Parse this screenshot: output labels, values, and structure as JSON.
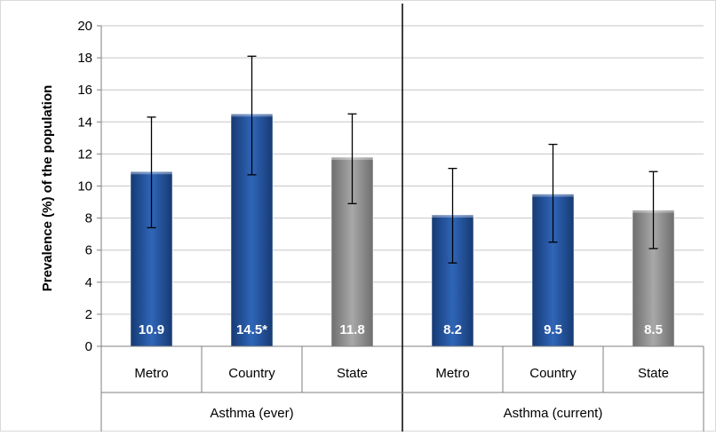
{
  "chart_data": {
    "type": "bar",
    "title": "",
    "ylabel": "Prevalence (%) of the population",
    "xlabel": "",
    "ylim": [
      0,
      20
    ],
    "yticks": [
      0,
      2,
      4,
      6,
      8,
      10,
      12,
      14,
      16,
      18,
      20
    ],
    "grid": true,
    "groups": [
      {
        "label": "Asthma (ever)",
        "bars": [
          {
            "category": "Metro",
            "value": 10.9,
            "value_label": "10.9",
            "error_low": 7.4,
            "error_high": 14.3,
            "color": "#1f4e96"
          },
          {
            "category": "Country",
            "value": 14.5,
            "value_label": "14.5*",
            "error_low": 10.7,
            "error_high": 18.1,
            "color": "#1f4e96"
          },
          {
            "category": "State",
            "value": 11.8,
            "value_label": "11.8",
            "error_low": 8.9,
            "error_high": 14.5,
            "color": "#8a8a8a"
          }
        ]
      },
      {
        "label": "Asthma (current)",
        "bars": [
          {
            "category": "Metro",
            "value": 8.2,
            "value_label": "8.2",
            "error_low": 5.2,
            "error_high": 11.1,
            "color": "#1f4e96"
          },
          {
            "category": "Country",
            "value": 9.5,
            "value_label": "9.5",
            "error_low": 6.5,
            "error_high": 12.6,
            "color": "#1f4e96"
          },
          {
            "category": "State",
            "value": 8.5,
            "value_label": "8.5",
            "error_low": 6.1,
            "error_high": 10.9,
            "color": "#8a8a8a"
          }
        ]
      }
    ]
  }
}
